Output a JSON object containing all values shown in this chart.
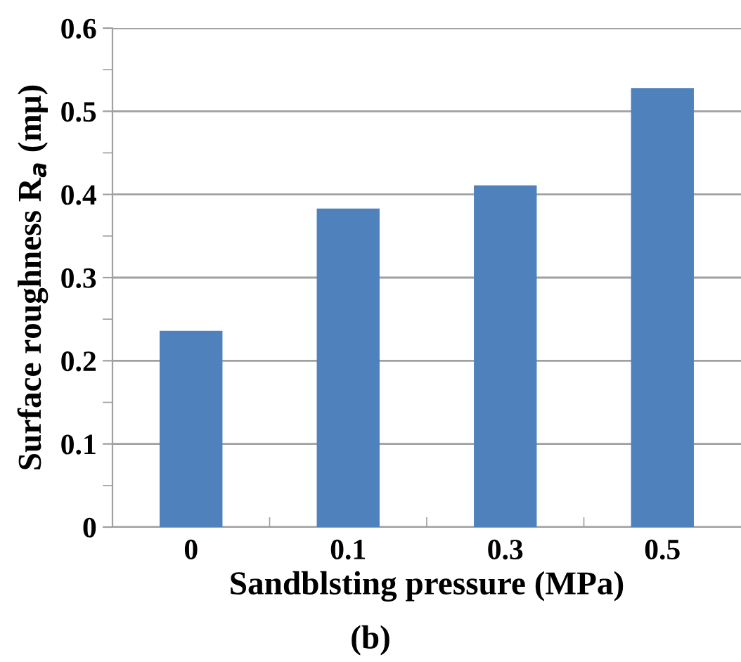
{
  "chart_data": {
    "type": "bar",
    "xlabel": "Sandblsting pressure (MPa)",
    "ylabel": "Surface roughness R$_{a}$ (mμ)",
    "categories": [
      "0",
      "0.1",
      "0.3",
      "0.5"
    ],
    "values": [
      0.236,
      0.383,
      0.411,
      0.528
    ],
    "color": "#4f81bd",
    "ylim": [
      0,
      0.6
    ],
    "yticks": [
      0,
      0.1,
      0.2,
      0.3,
      0.4,
      0.5,
      0.6
    ],
    "grid": "y",
    "annotations": [
      "(b)"
    ]
  }
}
